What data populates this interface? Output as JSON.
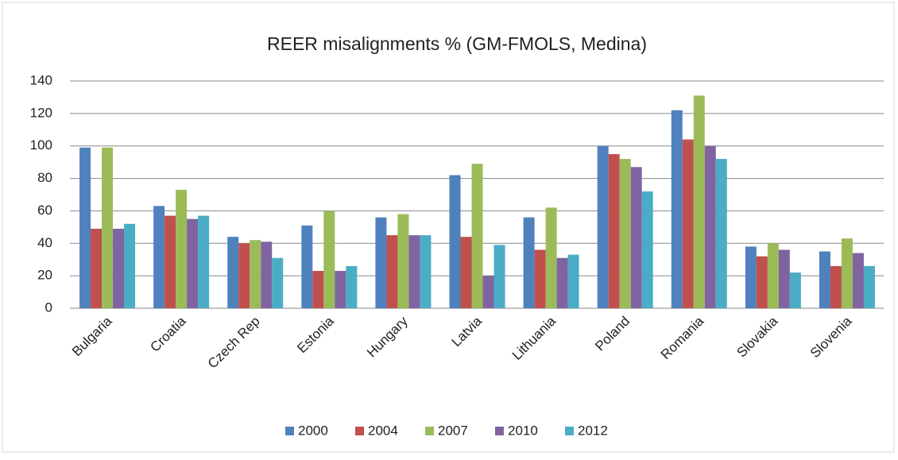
{
  "chart_data": {
    "type": "bar",
    "title": "REER misalignments % (GM-FMOLS, Medina)",
    "categories": [
      "Bulgaria",
      "Croatia",
      "Czech Rep",
      "Estonia",
      "Hungary",
      "Latvia",
      "Lithuania",
      "Poland",
      "Romania",
      "Slovakia",
      "Slovenia"
    ],
    "series": [
      {
        "name": "2000",
        "color": "#4f81bd",
        "values": [
          99,
          63,
          44,
          51,
          56,
          82,
          56,
          100,
          122,
          38,
          35
        ]
      },
      {
        "name": "2004",
        "color": "#c0504d",
        "values": [
          49,
          57,
          40,
          23,
          45,
          44,
          36,
          95,
          104,
          32,
          26
        ]
      },
      {
        "name": "2007",
        "color": "#9bbb59",
        "values": [
          99,
          73,
          42,
          60,
          58,
          89,
          62,
          92,
          131,
          40,
          43
        ]
      },
      {
        "name": "2010",
        "color": "#8064a2",
        "values": [
          49,
          55,
          41,
          23,
          45,
          20,
          31,
          87,
          100,
          36,
          34
        ]
      },
      {
        "name": "2012",
        "color": "#4bacc6",
        "values": [
          52,
          57,
          31,
          26,
          45,
          39,
          33,
          72,
          92,
          22,
          26
        ]
      }
    ],
    "ylim": [
      0,
      140
    ],
    "yticks": [
      0,
      20,
      40,
      60,
      80,
      100,
      120,
      140
    ],
    "grid": true,
    "legend": "bottom"
  }
}
